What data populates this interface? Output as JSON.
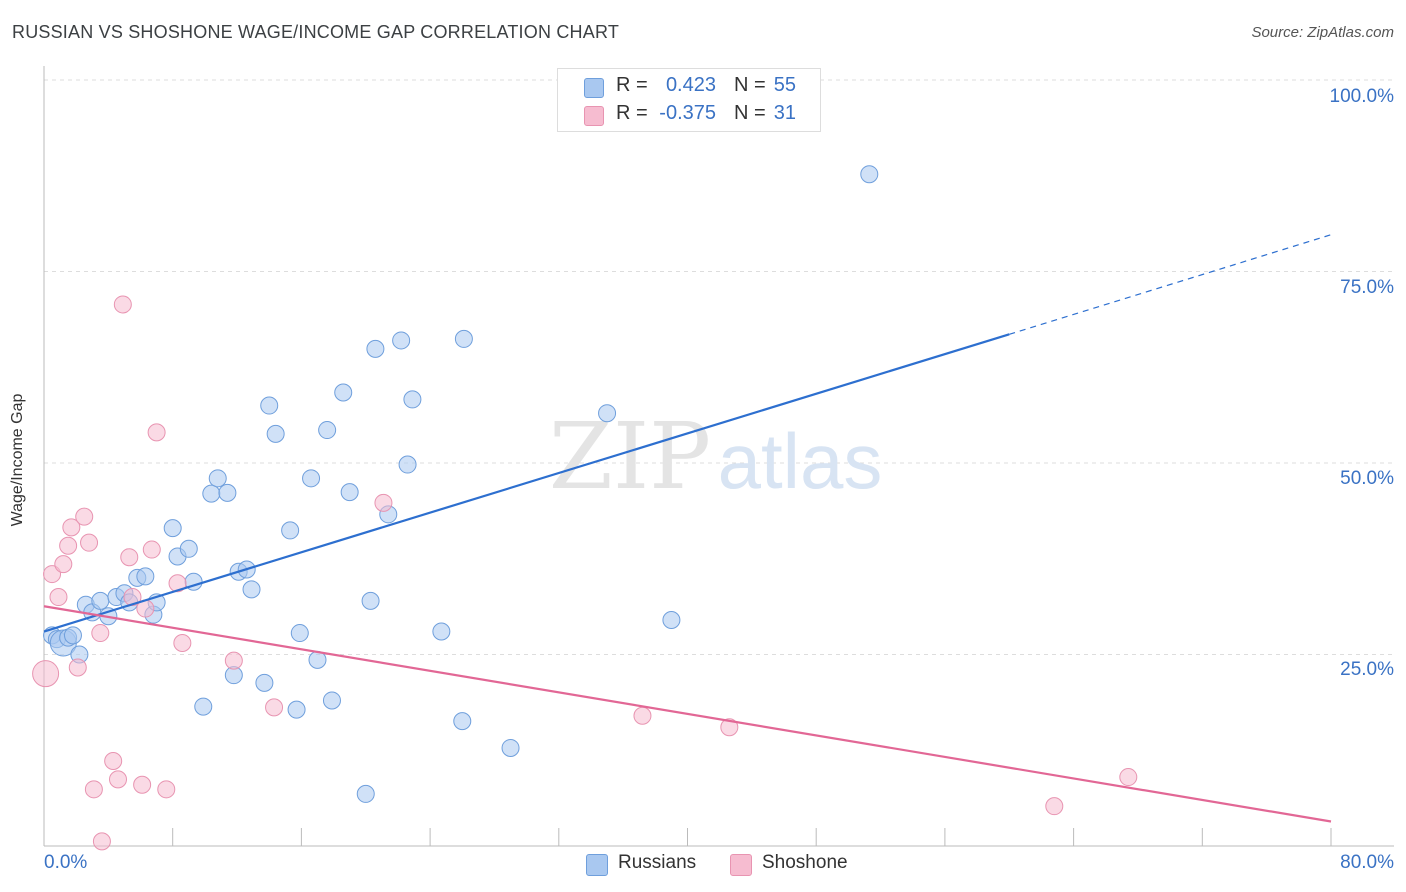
{
  "chart_data": {
    "type": "scatter",
    "title": "RUSSIAN VS SHOSHONE WAGE/INCOME GAP CORRELATION CHART",
    "source": "Source: ZipAtlas.com",
    "xlabel": "",
    "ylabel": "Wage/Income Gap",
    "xlim": [
      0,
      80
    ],
    "ylim": [
      0,
      100
    ],
    "x_tick_labels": [
      "0.0%",
      "80.0%"
    ],
    "y_tick_labels": [
      "100.0%",
      "75.0%",
      "50.0%",
      "25.0%"
    ],
    "y_tick_values": [
      100,
      75,
      50,
      25
    ],
    "watermark": "ZIPatlas",
    "legend": {
      "rows": [
        {
          "r_label": "R =",
          "r_value": "0.423",
          "n_label": "N =",
          "n_value": "55"
        },
        {
          "r_label": "R =",
          "r_value": "-0.375",
          "n_label": "N =",
          "n_value": "31"
        }
      ]
    },
    "colors": {
      "russians_fill": "#a9c8f0",
      "russians_stroke": "#6f9fdc",
      "russians_line": "#2d6fcf",
      "shoshone_fill": "#f6bcd0",
      "shoshone_stroke": "#e894b1",
      "shoshone_line": "#e26795",
      "grid": "#dddddd",
      "axis_text": "#3a72c4"
    },
    "series": [
      {
        "name": "Russians",
        "points": [
          [
            0.5,
            27.5
          ],
          [
            0.8,
            27.0
          ],
          [
            1.2,
            26.5
          ],
          [
            1.5,
            27.2
          ],
          [
            1.8,
            27.5
          ],
          [
            2.2,
            25.0
          ],
          [
            2.6,
            31.5
          ],
          [
            3.0,
            30.5
          ],
          [
            3.5,
            32.0
          ],
          [
            4.0,
            30.0
          ],
          [
            4.5,
            32.5
          ],
          [
            5.0,
            33.0
          ],
          [
            5.3,
            31.8
          ],
          [
            5.8,
            35.0
          ],
          [
            6.3,
            35.2
          ],
          [
            6.8,
            30.2
          ],
          [
            7.0,
            31.8
          ],
          [
            8.0,
            41.5
          ],
          [
            8.3,
            37.8
          ],
          [
            9.0,
            38.8
          ],
          [
            9.3,
            34.5
          ],
          [
            9.9,
            18.2
          ],
          [
            10.4,
            46.0
          ],
          [
            10.8,
            48.0
          ],
          [
            11.4,
            46.1
          ],
          [
            11.8,
            22.3
          ],
          [
            12.1,
            35.8
          ],
          [
            12.6,
            36.1
          ],
          [
            12.9,
            33.5
          ],
          [
            13.7,
            21.3
          ],
          [
            14.0,
            57.5
          ],
          [
            14.4,
            53.8
          ],
          [
            15.3,
            41.2
          ],
          [
            15.7,
            17.8
          ],
          [
            15.9,
            27.8
          ],
          [
            16.6,
            48.0
          ],
          [
            17.0,
            24.3
          ],
          [
            17.6,
            54.3
          ],
          [
            17.9,
            19.0
          ],
          [
            18.6,
            59.2
          ],
          [
            19.0,
            46.2
          ],
          [
            20.0,
            6.8
          ],
          [
            20.3,
            32.0
          ],
          [
            20.6,
            64.9
          ],
          [
            21.4,
            43.3
          ],
          [
            22.2,
            66.0
          ],
          [
            22.6,
            49.8
          ],
          [
            22.9,
            58.3
          ],
          [
            24.7,
            28.0
          ],
          [
            26.0,
            16.3
          ],
          [
            26.1,
            66.2
          ],
          [
            29.0,
            12.8
          ],
          [
            35.0,
            56.5
          ],
          [
            39.0,
            29.5
          ],
          [
            51.3,
            87.7
          ]
        ]
      },
      {
        "name": "Shoshone",
        "points": [
          [
            0.1,
            22.5
          ],
          [
            0.5,
            35.5
          ],
          [
            0.9,
            32.5
          ],
          [
            1.2,
            36.8
          ],
          [
            1.5,
            39.2
          ],
          [
            1.7,
            41.6
          ],
          [
            2.1,
            23.3
          ],
          [
            2.5,
            43.0
          ],
          [
            2.8,
            39.6
          ],
          [
            3.1,
            7.4
          ],
          [
            3.5,
            27.8
          ],
          [
            3.6,
            0.6
          ],
          [
            4.3,
            11.1
          ],
          [
            4.6,
            8.7
          ],
          [
            4.9,
            70.7
          ],
          [
            5.3,
            37.7
          ],
          [
            5.5,
            32.5
          ],
          [
            6.1,
            8.0
          ],
          [
            6.3,
            31.0
          ],
          [
            6.7,
            38.7
          ],
          [
            7.0,
            54.0
          ],
          [
            7.6,
            7.4
          ],
          [
            8.3,
            34.3
          ],
          [
            8.6,
            26.5
          ],
          [
            11.8,
            24.2
          ],
          [
            14.3,
            18.1
          ],
          [
            21.1,
            44.8
          ],
          [
            37.2,
            17.0
          ],
          [
            42.6,
            15.5
          ],
          [
            62.8,
            5.2
          ],
          [
            67.4,
            9.0
          ]
        ]
      }
    ],
    "trendlines": [
      {
        "name": "Russians",
        "x": [
          0,
          60
        ],
        "y": [
          28.0,
          66.8
        ],
        "dashed_to": [
          80,
          79.8
        ]
      },
      {
        "name": "Shoshone",
        "x": [
          0,
          80
        ],
        "y": [
          31.3,
          3.2
        ]
      }
    ]
  },
  "legend_bottom": [
    "Russians",
    "Shoshone"
  ]
}
